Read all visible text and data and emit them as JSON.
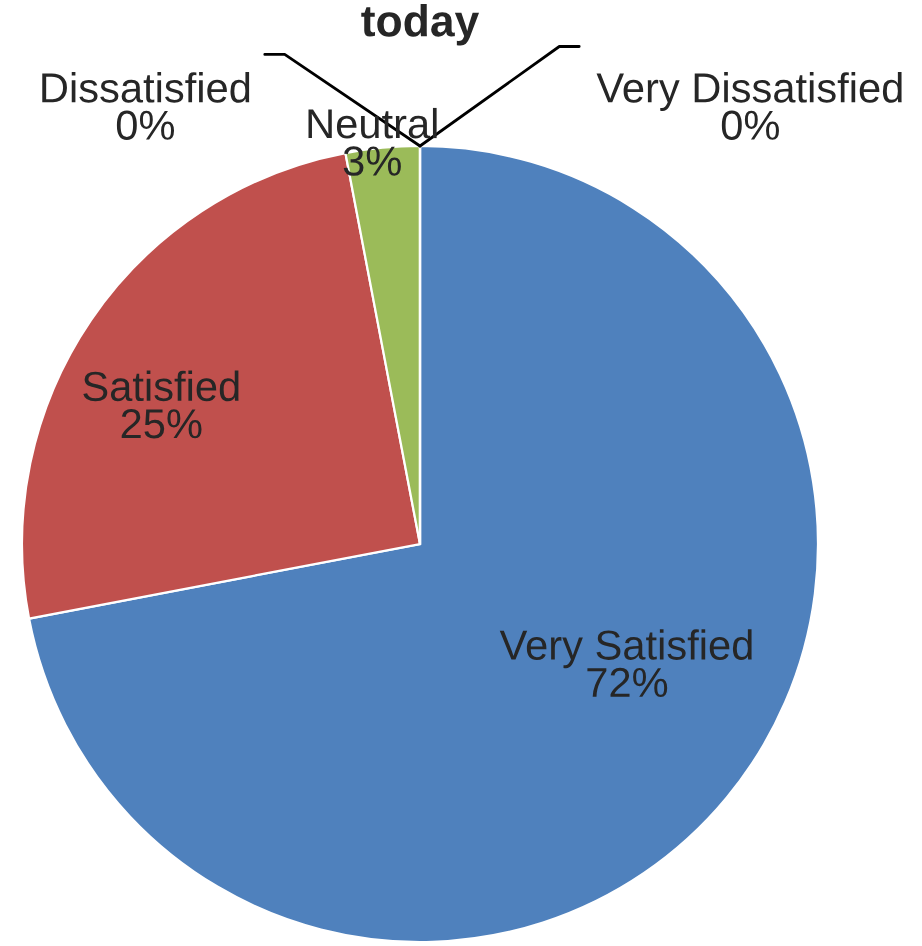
{
  "chart_data": {
    "type": "pie",
    "title": "today",
    "categories": [
      "Very Satisfied",
      "Satisfied",
      "Neutral",
      "Dissatisfied",
      "Very Dissatisfied"
    ],
    "values": [
      72,
      25,
      3,
      0,
      0
    ],
    "value_labels": [
      "72%",
      "25%",
      "3%",
      "0%",
      "0%"
    ],
    "colors": [
      "#4f81bd",
      "#c0504d",
      "#9bbb59",
      "#8064a2",
      "#4bacc6"
    ]
  }
}
